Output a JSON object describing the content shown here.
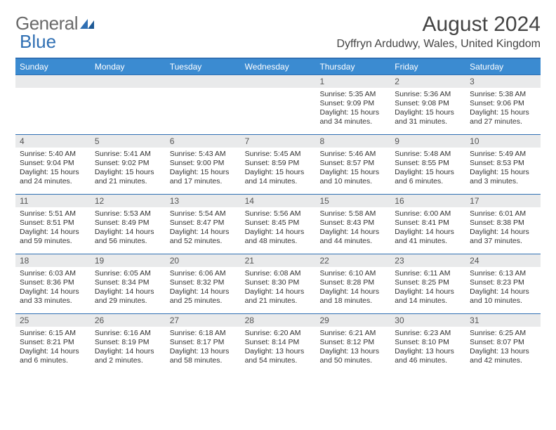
{
  "logo": {
    "text_a": "General",
    "text_b": "Blue"
  },
  "title": "August 2024",
  "location": "Dyffryn Ardudwy, Wales, United Kingdom",
  "colors": {
    "header_bg": "#3b8bd1",
    "header_text": "#ffffff",
    "rule": "#2f6fb3",
    "daynum_bg": "#e9eaeb",
    "text": "#333333",
    "logo_gray": "#6a6a6a",
    "logo_blue": "#2f6fb3",
    "page_bg": "#ffffff"
  },
  "day_headers": [
    "Sunday",
    "Monday",
    "Tuesday",
    "Wednesday",
    "Thursday",
    "Friday",
    "Saturday"
  ],
  "fonts": {
    "title_size": 30,
    "location_size": 16,
    "header_size": 12,
    "cell_size": 10.5
  },
  "weeks": [
    [
      {
        "day": "",
        "lines": []
      },
      {
        "day": "",
        "lines": []
      },
      {
        "day": "",
        "lines": []
      },
      {
        "day": "",
        "lines": []
      },
      {
        "day": "1",
        "lines": [
          "Sunrise: 5:35 AM",
          "Sunset: 9:09 PM",
          "Daylight: 15 hours and 34 minutes."
        ]
      },
      {
        "day": "2",
        "lines": [
          "Sunrise: 5:36 AM",
          "Sunset: 9:08 PM",
          "Daylight: 15 hours and 31 minutes."
        ]
      },
      {
        "day": "3",
        "lines": [
          "Sunrise: 5:38 AM",
          "Sunset: 9:06 PM",
          "Daylight: 15 hours and 27 minutes."
        ]
      }
    ],
    [
      {
        "day": "4",
        "lines": [
          "Sunrise: 5:40 AM",
          "Sunset: 9:04 PM",
          "Daylight: 15 hours and 24 minutes."
        ]
      },
      {
        "day": "5",
        "lines": [
          "Sunrise: 5:41 AM",
          "Sunset: 9:02 PM",
          "Daylight: 15 hours and 21 minutes."
        ]
      },
      {
        "day": "6",
        "lines": [
          "Sunrise: 5:43 AM",
          "Sunset: 9:00 PM",
          "Daylight: 15 hours and 17 minutes."
        ]
      },
      {
        "day": "7",
        "lines": [
          "Sunrise: 5:45 AM",
          "Sunset: 8:59 PM",
          "Daylight: 15 hours and 14 minutes."
        ]
      },
      {
        "day": "8",
        "lines": [
          "Sunrise: 5:46 AM",
          "Sunset: 8:57 PM",
          "Daylight: 15 hours and 10 minutes."
        ]
      },
      {
        "day": "9",
        "lines": [
          "Sunrise: 5:48 AM",
          "Sunset: 8:55 PM",
          "Daylight: 15 hours and 6 minutes."
        ]
      },
      {
        "day": "10",
        "lines": [
          "Sunrise: 5:49 AM",
          "Sunset: 8:53 PM",
          "Daylight: 15 hours and 3 minutes."
        ]
      }
    ],
    [
      {
        "day": "11",
        "lines": [
          "Sunrise: 5:51 AM",
          "Sunset: 8:51 PM",
          "Daylight: 14 hours and 59 minutes."
        ]
      },
      {
        "day": "12",
        "lines": [
          "Sunrise: 5:53 AM",
          "Sunset: 8:49 PM",
          "Daylight: 14 hours and 56 minutes."
        ]
      },
      {
        "day": "13",
        "lines": [
          "Sunrise: 5:54 AM",
          "Sunset: 8:47 PM",
          "Daylight: 14 hours and 52 minutes."
        ]
      },
      {
        "day": "14",
        "lines": [
          "Sunrise: 5:56 AM",
          "Sunset: 8:45 PM",
          "Daylight: 14 hours and 48 minutes."
        ]
      },
      {
        "day": "15",
        "lines": [
          "Sunrise: 5:58 AM",
          "Sunset: 8:43 PM",
          "Daylight: 14 hours and 44 minutes."
        ]
      },
      {
        "day": "16",
        "lines": [
          "Sunrise: 6:00 AM",
          "Sunset: 8:41 PM",
          "Daylight: 14 hours and 41 minutes."
        ]
      },
      {
        "day": "17",
        "lines": [
          "Sunrise: 6:01 AM",
          "Sunset: 8:38 PM",
          "Daylight: 14 hours and 37 minutes."
        ]
      }
    ],
    [
      {
        "day": "18",
        "lines": [
          "Sunrise: 6:03 AM",
          "Sunset: 8:36 PM",
          "Daylight: 14 hours and 33 minutes."
        ]
      },
      {
        "day": "19",
        "lines": [
          "Sunrise: 6:05 AM",
          "Sunset: 8:34 PM",
          "Daylight: 14 hours and 29 minutes."
        ]
      },
      {
        "day": "20",
        "lines": [
          "Sunrise: 6:06 AM",
          "Sunset: 8:32 PM",
          "Daylight: 14 hours and 25 minutes."
        ]
      },
      {
        "day": "21",
        "lines": [
          "Sunrise: 6:08 AM",
          "Sunset: 8:30 PM",
          "Daylight: 14 hours and 21 minutes."
        ]
      },
      {
        "day": "22",
        "lines": [
          "Sunrise: 6:10 AM",
          "Sunset: 8:28 PM",
          "Daylight: 14 hours and 18 minutes."
        ]
      },
      {
        "day": "23",
        "lines": [
          "Sunrise: 6:11 AM",
          "Sunset: 8:25 PM",
          "Daylight: 14 hours and 14 minutes."
        ]
      },
      {
        "day": "24",
        "lines": [
          "Sunrise: 6:13 AM",
          "Sunset: 8:23 PM",
          "Daylight: 14 hours and 10 minutes."
        ]
      }
    ],
    [
      {
        "day": "25",
        "lines": [
          "Sunrise: 6:15 AM",
          "Sunset: 8:21 PM",
          "Daylight: 14 hours and 6 minutes."
        ]
      },
      {
        "day": "26",
        "lines": [
          "Sunrise: 6:16 AM",
          "Sunset: 8:19 PM",
          "Daylight: 14 hours and 2 minutes."
        ]
      },
      {
        "day": "27",
        "lines": [
          "Sunrise: 6:18 AM",
          "Sunset: 8:17 PM",
          "Daylight: 13 hours and 58 minutes."
        ]
      },
      {
        "day": "28",
        "lines": [
          "Sunrise: 6:20 AM",
          "Sunset: 8:14 PM",
          "Daylight: 13 hours and 54 minutes."
        ]
      },
      {
        "day": "29",
        "lines": [
          "Sunrise: 6:21 AM",
          "Sunset: 8:12 PM",
          "Daylight: 13 hours and 50 minutes."
        ]
      },
      {
        "day": "30",
        "lines": [
          "Sunrise: 6:23 AM",
          "Sunset: 8:10 PM",
          "Daylight: 13 hours and 46 minutes."
        ]
      },
      {
        "day": "31",
        "lines": [
          "Sunrise: 6:25 AM",
          "Sunset: 8:07 PM",
          "Daylight: 13 hours and 42 minutes."
        ]
      }
    ]
  ]
}
